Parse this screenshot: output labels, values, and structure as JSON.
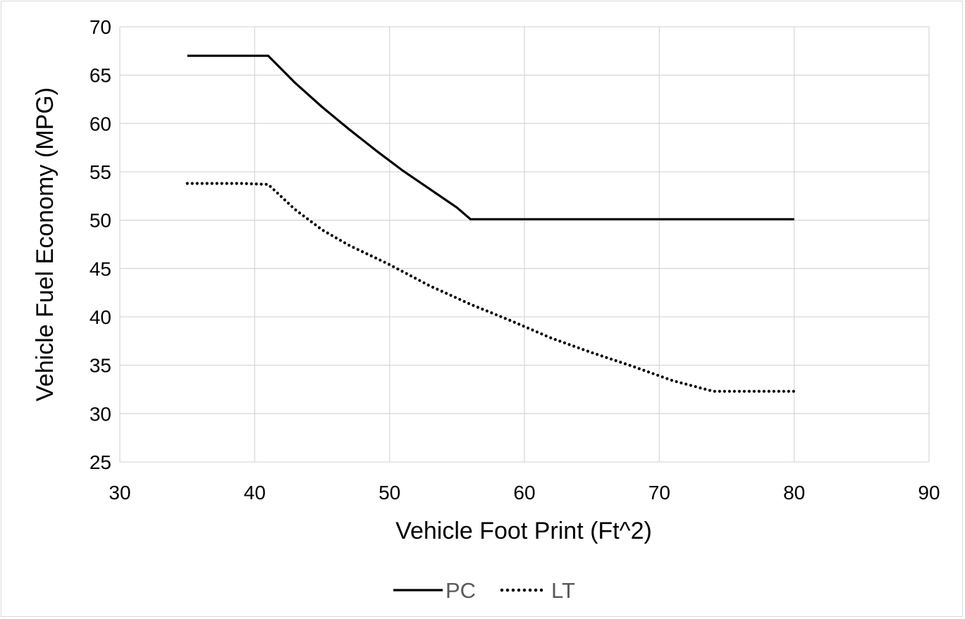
{
  "chart_data": {
    "type": "line",
    "title": "",
    "xlabel": "Vehicle Foot Print (Ft^2)",
    "ylabel": "Vehicle Fuel Economy (MPG)",
    "xlim": [
      30,
      90
    ],
    "ylim": [
      25,
      70
    ],
    "xticks": [
      30,
      40,
      50,
      60,
      70,
      80,
      90
    ],
    "yticks": [
      25,
      30,
      35,
      40,
      45,
      50,
      55,
      60,
      65,
      70
    ],
    "grid": true,
    "legend_position": "bottom",
    "series": [
      {
        "name": "PC",
        "style": "solid",
        "color": "#000000",
        "x": [
          35,
          41,
          43,
          45,
          47,
          49,
          51,
          53,
          55,
          56,
          60,
          65,
          70,
          75,
          80
        ],
        "y": [
          67.0,
          67.0,
          64.2,
          61.7,
          59.4,
          57.2,
          55.1,
          53.2,
          51.3,
          50.1,
          50.1,
          50.1,
          50.1,
          50.1,
          50.1
        ]
      },
      {
        "name": "LT",
        "style": "dotted",
        "color": "#000000",
        "x": [
          35,
          37,
          39,
          41,
          43,
          45,
          47,
          50,
          53,
          56,
          59,
          62,
          65,
          68,
          71,
          74,
          77,
          80
        ],
        "y": [
          53.8,
          53.8,
          53.8,
          53.7,
          51.1,
          49.0,
          47.4,
          45.4,
          43.2,
          41.3,
          39.6,
          37.8,
          36.3,
          34.9,
          33.4,
          32.3,
          32.3,
          32.3
        ]
      }
    ]
  }
}
